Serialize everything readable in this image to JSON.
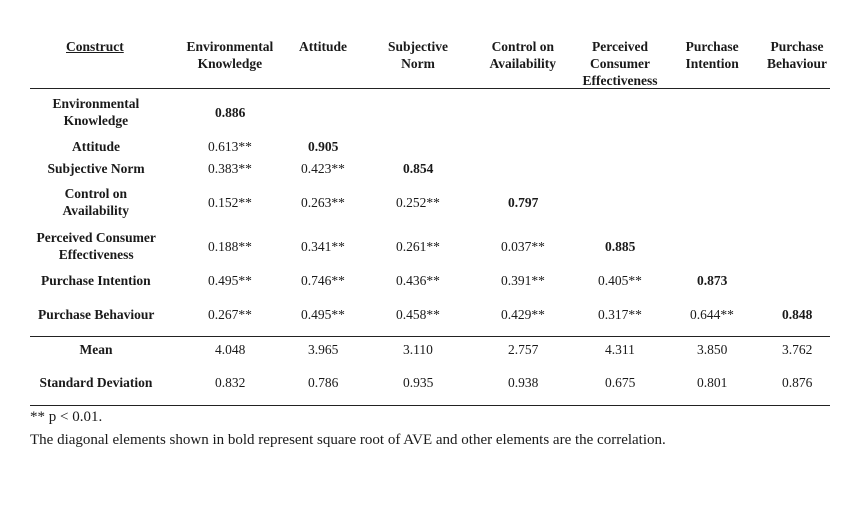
{
  "header": {
    "construct": "Construct",
    "columns": [
      [
        "Environmental",
        "Knowledge"
      ],
      [
        "Attitude"
      ],
      [
        "Subjective",
        "Norm"
      ],
      [
        "Control on",
        "Availability"
      ],
      [
        "Perceived",
        "Consumer",
        "Effectiveness"
      ],
      [
        "Purchase",
        "Intention"
      ],
      [
        "Purchase",
        "Behaviour"
      ]
    ]
  },
  "rows": [
    {
      "label": [
        "Environmental",
        "Knowledge"
      ],
      "values": [
        "0.886"
      ]
    },
    {
      "label": [
        "Attitude"
      ],
      "values": [
        "0.613**",
        "0.905"
      ]
    },
    {
      "label": [
        "Subjective Norm"
      ],
      "values": [
        "0.383**",
        "0.423**",
        "0.854"
      ]
    },
    {
      "label": [
        "Control on",
        "Availability"
      ],
      "values": [
        "0.152**",
        "0.263**",
        "0.252**",
        "0.797"
      ]
    },
    {
      "label": [
        "Perceived Consumer",
        "Effectiveness"
      ],
      "values": [
        "0.188**",
        "0.341**",
        "0.261**",
        "0.037**",
        "0.885"
      ]
    },
    {
      "label": [
        "Purchase Intention"
      ],
      "values": [
        "0.495**",
        "0.746**",
        "0.436**",
        "0.391**",
        "0.405**",
        "0.873"
      ]
    },
    {
      "label": [
        "Purchase Behaviour"
      ],
      "values": [
        "0.267**",
        "0.495**",
        "0.458**",
        "0.429**",
        "0.317**",
        "0.644**",
        "0.848"
      ]
    }
  ],
  "stats": [
    {
      "label": [
        "Mean"
      ],
      "values": [
        "4.048",
        "3.965",
        "3.110",
        "2.757",
        "4.311",
        "3.850",
        "3.762"
      ]
    },
    {
      "label": [
        "Standard Deviation"
      ],
      "values": [
        "0.832",
        "0.786",
        "0.935",
        "0.938",
        "0.675",
        "0.801",
        "0.876"
      ]
    }
  ],
  "notes": [
    "** p < 0.01.",
    "The diagonal elements shown in bold represent square root of AVE and other elements are the correlation."
  ]
}
